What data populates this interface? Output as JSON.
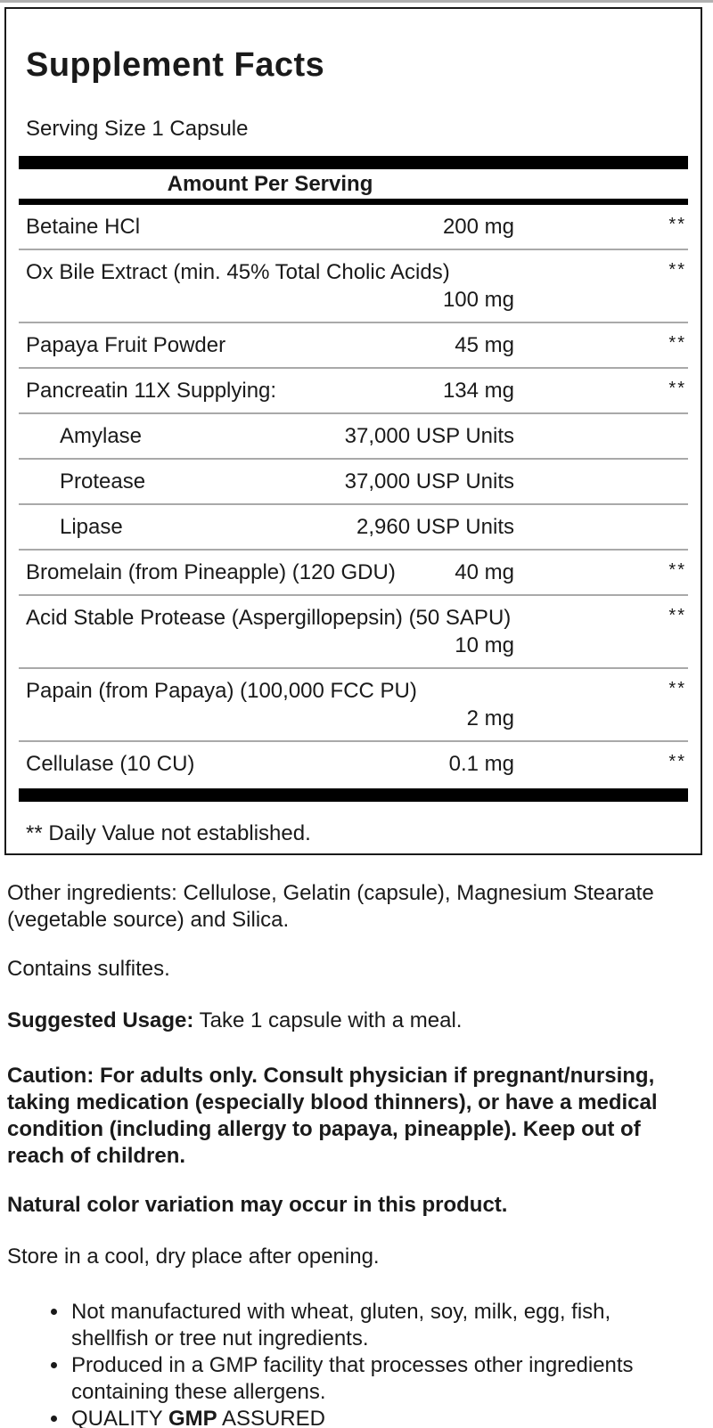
{
  "panel": {
    "title": "Supplement Facts",
    "serving_size": "Serving Size 1 Capsule",
    "column_header": "Amount Per Serving",
    "rows": [
      {
        "name": "Betaine HCl",
        "amount": "200 mg",
        "dv": "**",
        "indent": false,
        "two_line": false
      },
      {
        "name": "Ox Bile Extract (min. 45% Total Cholic Acids)",
        "amount": "100 mg",
        "dv": "**",
        "indent": false,
        "two_line": true
      },
      {
        "name": "Papaya Fruit Powder",
        "amount": "45 mg",
        "dv": "**",
        "indent": false,
        "two_line": false
      },
      {
        "name": "Pancreatin 11X Supplying:",
        "amount": "134 mg",
        "dv": "**",
        "indent": false,
        "two_line": false
      },
      {
        "name": "Amylase",
        "amount": "37,000 USP Units",
        "dv": "",
        "indent": true,
        "two_line": false
      },
      {
        "name": "Protease",
        "amount": "37,000 USP Units",
        "dv": "",
        "indent": true,
        "two_line": false
      },
      {
        "name": "Lipase",
        "amount": "2,960 USP Units",
        "dv": "",
        "indent": true,
        "two_line": false
      },
      {
        "name": "Bromelain (from Pineapple) (120 GDU)",
        "amount": "40 mg",
        "dv": "**",
        "indent": false,
        "two_line": false
      },
      {
        "name": "Acid Stable Protease (Aspergillopepsin) (50 SAPU)",
        "amount": "10 mg",
        "dv": "**",
        "indent": false,
        "two_line": false
      },
      {
        "name": "Papain (from Papaya) (100,000 FCC PU)",
        "amount": "2 mg",
        "dv": "**",
        "indent": false,
        "two_line": true
      },
      {
        "name": "Cellulase (10 CU)",
        "amount": "0.1 mg",
        "dv": "**",
        "indent": false,
        "two_line": false
      }
    ],
    "footnote": "** Daily Value not established."
  },
  "info": {
    "other_ingredients": "Other ingredients: Cellulose, Gelatin (capsule), Magnesium Stearate (vegetable source) and Silica.",
    "contains": "Contains sulfites.",
    "suggested_usage": {
      "label": "Suggested Usage:",
      "text": " Take 1 capsule with a meal."
    },
    "caution": "Caution: For adults only. Consult physician if pregnant/nursing, taking medication (especially blood thinners), or have a medical condition (including allergy to papaya, pineapple). Keep out of reach of children.",
    "color_note": "Natural color variation may occur in this product.",
    "storage": "Store in a cool, dry place after opening.",
    "bullets": [
      "Not manufactured with wheat, gluten, soy, milk, egg, fish, shellfish or tree nut ingredients.",
      "Produced in a GMP facility that processes other ingredients containing these allergens."
    ],
    "quality_bullet": {
      "pre": "QUALITY ",
      "bold": "GMP",
      "post": " ASSURED"
    }
  },
  "colors": {
    "text": "#1a1a1a",
    "bar": "#000000",
    "divider": "#a9a9a9",
    "background": "#ffffff",
    "top_edge": "#b0b0b0"
  }
}
